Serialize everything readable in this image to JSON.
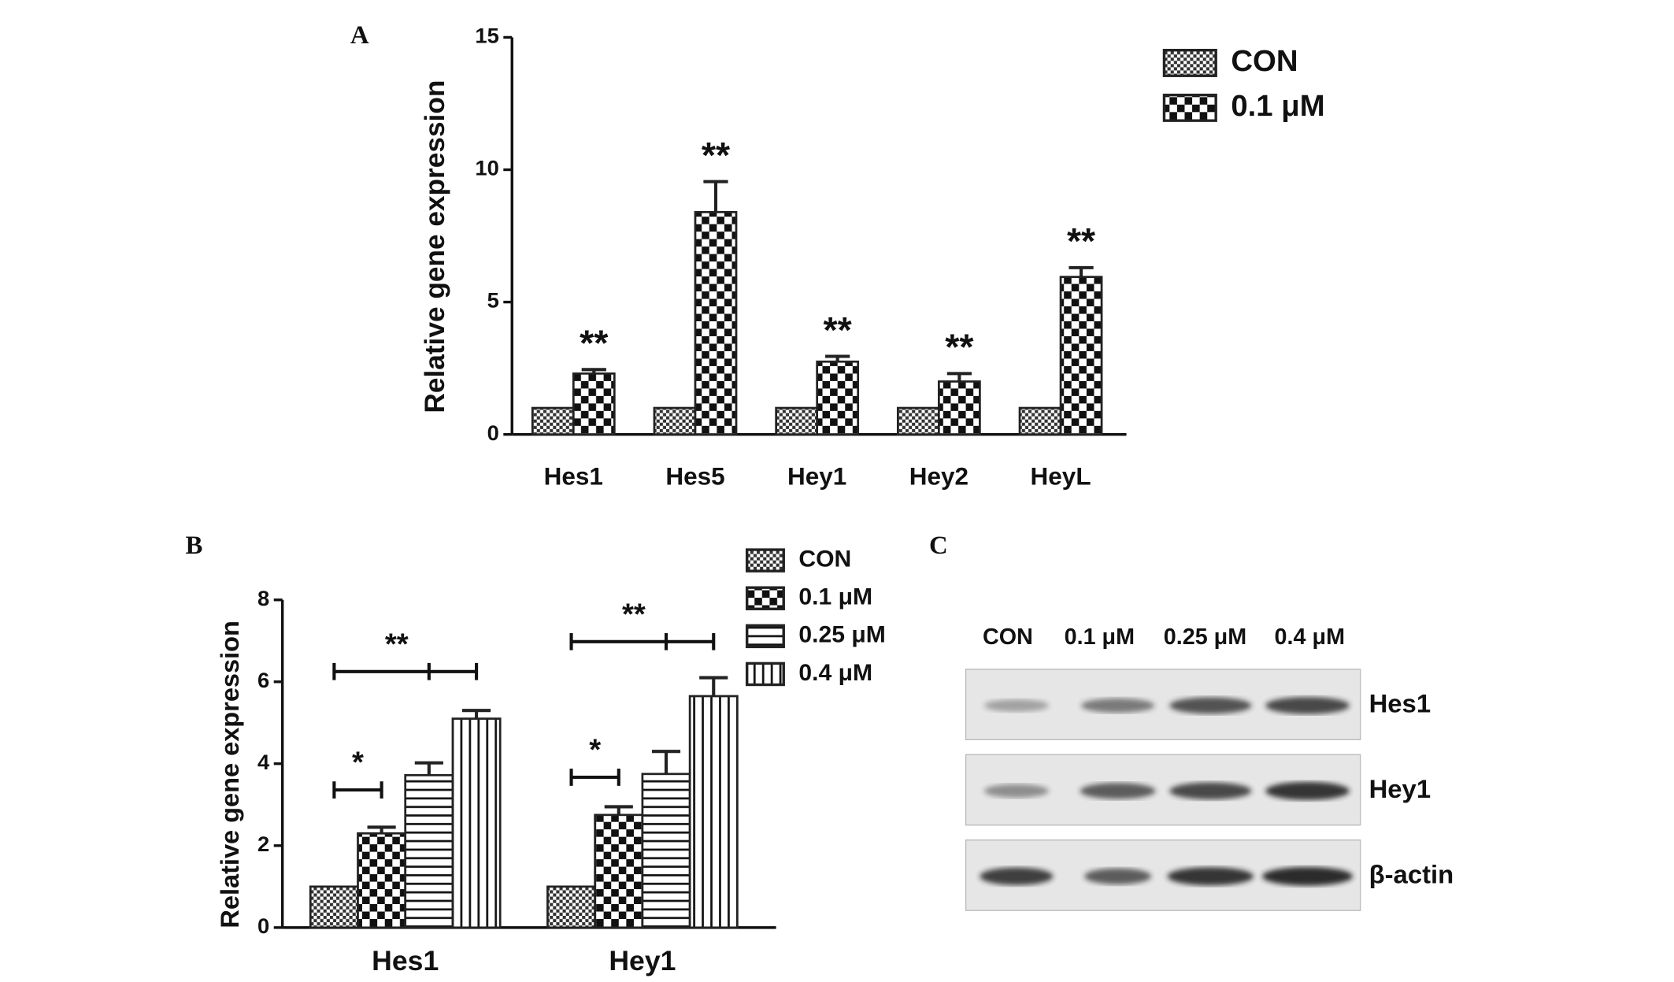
{
  "chart_data": [
    {
      "type": "bar",
      "panel_label": "A",
      "y_label": "Relative gene expression",
      "categories": [
        "Hes1",
        "Hes5",
        "Hey1",
        "Hey2",
        "HeyL"
      ],
      "series": [
        {
          "name": "CON",
          "color": "#222222",
          "pattern": "checker-small",
          "values": [
            1,
            1,
            1,
            1,
            1
          ]
        },
        {
          "name": "0.1 μM",
          "color": "#222222",
          "pattern": "checker-large",
          "values": [
            2.3,
            8.4,
            2.75,
            2.0,
            5.95
          ],
          "errors": [
            0.15,
            1.15,
            0.2,
            0.3,
            0.35
          ]
        }
      ],
      "annotations": [
        "**",
        "**",
        "**",
        "**",
        "**"
      ],
      "ylim": [
        0,
        15
      ],
      "yticks": [
        0,
        5,
        10,
        15
      ],
      "grid": false,
      "legend": "top-right"
    },
    {
      "type": "bar",
      "panel_label": "B",
      "y_label": "Relative gene expression",
      "categories": [
        "Hes1",
        "Hey1"
      ],
      "series": [
        {
          "name": "CON",
          "color": "#222222",
          "pattern": "checker-small",
          "values": [
            1,
            1
          ]
        },
        {
          "name": "0.1 μM",
          "color": "#222222",
          "pattern": "checker-large",
          "values": [
            2.3,
            2.75
          ],
          "errors": [
            0.15,
            0.2
          ]
        },
        {
          "name": "0.25 μM",
          "color": "#222222",
          "pattern": "horizontal",
          "values": [
            3.72,
            3.75
          ],
          "errors": [
            0.3,
            0.55
          ]
        },
        {
          "name": "0.4 μM",
          "color": "#222222",
          "pattern": "vertical",
          "values": [
            5.1,
            5.65
          ],
          "errors": [
            0.2,
            0.45
          ]
        }
      ],
      "brackets": [
        [
          {
            "text": "*",
            "y": 3.36
          },
          {
            "text": "**",
            "y": 6.25
          }
        ],
        [
          {
            "text": "*",
            "y": 3.67
          },
          {
            "text": "**",
            "y": 6.98
          }
        ]
      ],
      "ylim": [
        0,
        8
      ],
      "yticks": [
        0,
        2,
        4,
        6,
        8
      ],
      "grid": false,
      "legend": "top-right"
    }
  ],
  "blot": {
    "panel_label": "C",
    "columns": [
      "CON",
      "0.1 μM",
      "0.25 μM",
      "0.4 μM"
    ],
    "rows": [
      "Hes1",
      "Hey1",
      "β-actin"
    ]
  }
}
